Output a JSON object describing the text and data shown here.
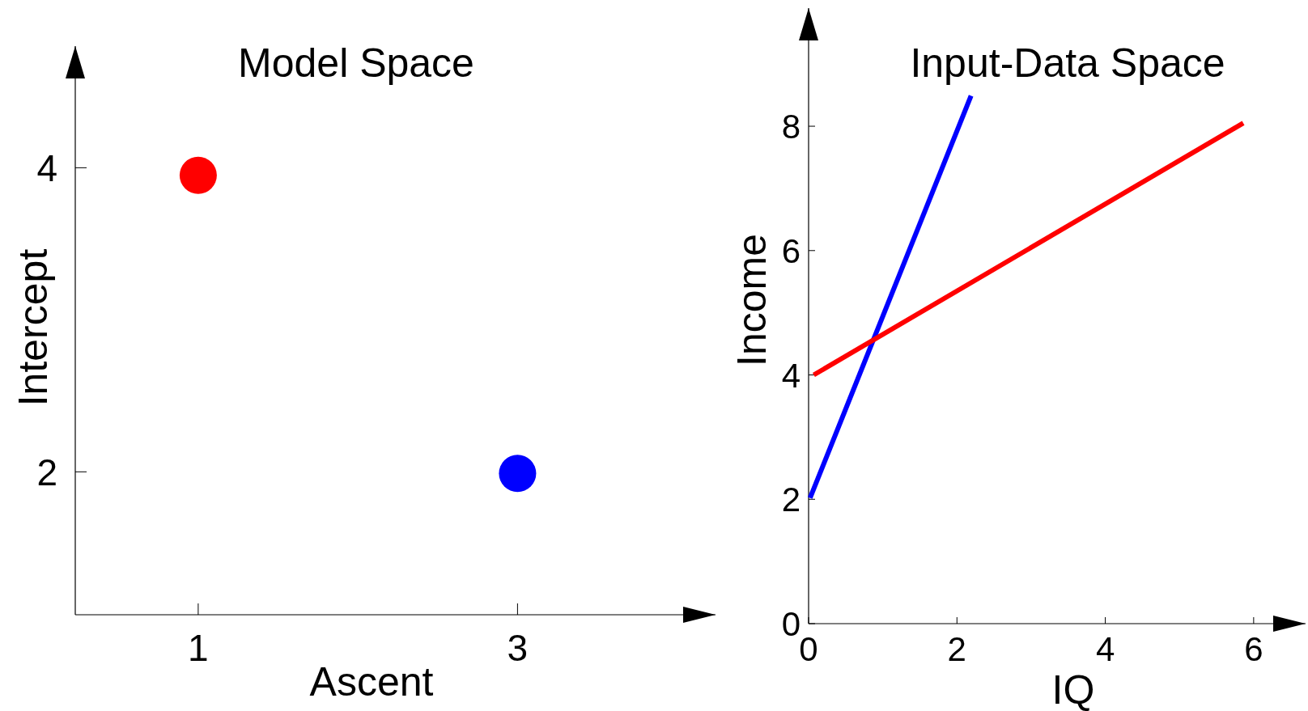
{
  "chart_data": [
    {
      "type": "scatter",
      "title": "Model Space",
      "xlabel": "Ascent",
      "ylabel": "Intercept",
      "xlim": [
        0.23,
        4.24
      ],
      "ylim": [
        1.06,
        4.8
      ],
      "xticks": [
        1,
        3
      ],
      "yticks": [
        2,
        4
      ],
      "marker": "circle",
      "series": [
        {
          "x": [
            1
          ],
          "values": [
            3.95
          ],
          "color": "#ff0000"
        },
        {
          "x": [
            3
          ],
          "values": [
            1.99
          ],
          "color": "#0000ff"
        }
      ]
    },
    {
      "type": "line",
      "title": "Input-Data Space",
      "xlabel": "IQ",
      "ylabel": "Income",
      "xlim": [
        0,
        6.7
      ],
      "ylim": [
        0,
        9.9
      ],
      "xticks": [
        0,
        2,
        4,
        6
      ],
      "yticks": [
        0,
        2,
        4,
        6,
        8
      ],
      "series": [
        {
          "x": [
            0.02,
            2.19
          ],
          "values": [
            2.02,
            8.49
          ],
          "color": "#0000ff"
        },
        {
          "x": [
            0.07,
            5.86
          ],
          "values": [
            4.0,
            8.05
          ],
          "color": "#ff0000"
        }
      ]
    }
  ]
}
